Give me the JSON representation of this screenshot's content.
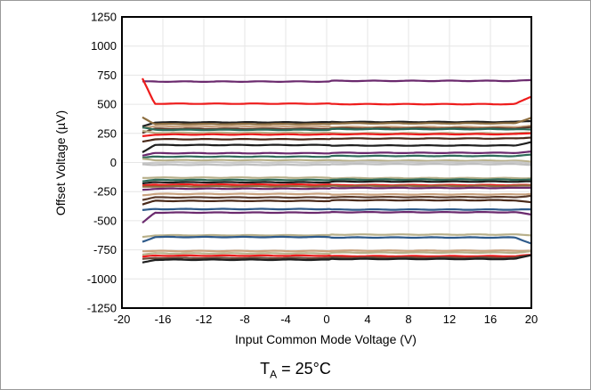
{
  "condition": {
    "symbol": "T",
    "subscript": "A",
    "rest": " = 25°C"
  },
  "chart_data": {
    "type": "line",
    "xlabel": "Input Common Mode Voltage (V)",
    "ylabel": "Offset Voltage (µV)",
    "xlim": [
      -20,
      20
    ],
    "ylim": [
      -1250,
      1250
    ],
    "xticks": [
      -20,
      -16,
      -12,
      -8,
      -4,
      0,
      4,
      8,
      12,
      16,
      20
    ],
    "yticks": [
      1250,
      1000,
      750,
      500,
      250,
      0,
      -250,
      -500,
      -750,
      -1000,
      -1250
    ],
    "grid": true,
    "x_range_of_series": [
      -18,
      20
    ],
    "series": [
      {
        "color": "#6b2a6e",
        "offset": 695,
        "start": 695,
        "end": 700
      },
      {
        "color": "#ee1c1c",
        "offset": 505,
        "start": 720,
        "end": 570
      },
      {
        "color": "#1f1f1f",
        "offset": 345,
        "start": 310,
        "end": 355
      },
      {
        "color": "#8c6d3f",
        "offset": 330,
        "start": 390,
        "end": 380
      },
      {
        "color": "#c9a27e",
        "offset": 310,
        "start": 300,
        "end": 320
      },
      {
        "color": "#5a3a2a",
        "offset": 290,
        "start": 255,
        "end": 300
      },
      {
        "color": "#2e6b5a",
        "offset": 280,
        "start": 300,
        "end": 275
      },
      {
        "color": "#b8b08a",
        "offset": 255,
        "start": 270,
        "end": 260
      },
      {
        "color": "#ee1c1c",
        "offset": 240,
        "start": 225,
        "end": 250
      },
      {
        "color": "#4a2a1a",
        "offset": 200,
        "start": 180,
        "end": 210
      },
      {
        "color": "#1f1f1f",
        "offset": 150,
        "start": 90,
        "end": 180
      },
      {
        "color": "#6b2a6e",
        "offset": 80,
        "start": 60,
        "end": 90
      },
      {
        "color": "#2e6b5a",
        "offset": 50,
        "start": 40,
        "end": 60
      },
      {
        "color": "#b8b08a",
        "offset": 20,
        "start": 30,
        "end": 10
      },
      {
        "color": "#c8c8c8",
        "offset": 0,
        "start": -10,
        "end": -10
      },
      {
        "color": "#bfbfbf",
        "offset": -20,
        "start": -15,
        "end": -25
      },
      {
        "color": "#b8b08a",
        "offset": -130,
        "start": -130,
        "end": -130
      },
      {
        "color": "#2e6b5a",
        "offset": -150,
        "start": -160,
        "end": -150
      },
      {
        "color": "#1f1f1f",
        "offset": -170,
        "start": -180,
        "end": -170
      },
      {
        "color": "#ee1c1c",
        "offset": -190,
        "start": -200,
        "end": -190
      },
      {
        "color": "#8c6d3f",
        "offset": -205,
        "start": -210,
        "end": -200
      },
      {
        "color": "#6b2a6e",
        "offset": -225,
        "start": -235,
        "end": -220
      },
      {
        "color": "#c9a27e",
        "offset": -270,
        "start": -280,
        "end": -265
      },
      {
        "color": "#5a3a2a",
        "offset": -300,
        "start": -320,
        "end": -290
      },
      {
        "color": "#4a2a1a",
        "offset": -330,
        "start": -360,
        "end": -350
      },
      {
        "color": "#2e5a8a",
        "offset": -400,
        "start": -410,
        "end": -400
      },
      {
        "color": "#6b2a6e",
        "offset": -430,
        "start": -520,
        "end": -450
      },
      {
        "color": "#b8b08a",
        "offset": -625,
        "start": -640,
        "end": -630
      },
      {
        "color": "#2e5a8a",
        "offset": -640,
        "start": -680,
        "end": -690
      },
      {
        "color": "#c9a27e",
        "offset": -760,
        "start": -760,
        "end": -760
      },
      {
        "color": "#b8b08a",
        "offset": -780,
        "start": -790,
        "end": -770
      },
      {
        "color": "#ee1c1c",
        "offset": -800,
        "start": -810,
        "end": -790
      },
      {
        "color": "#6b4a3a",
        "offset": -820,
        "start": -830,
        "end": -800
      },
      {
        "color": "#1f1f1f",
        "offset": -835,
        "start": -860,
        "end": -800
      }
    ]
  }
}
